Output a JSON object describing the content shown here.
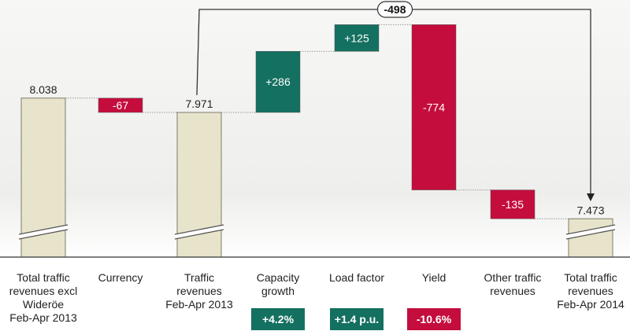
{
  "chart_data": {
    "type": "waterfall",
    "categories": [
      "Total traffic revenues excl Wideröe Feb-Apr 2013",
      "Currency",
      "Traffic revenues Feb-Apr 2013",
      "Capacity growth",
      "Load factor",
      "Yield",
      "Other traffic revenues",
      "Total traffic revenues Feb-Apr 2014"
    ],
    "steps": [
      {
        "label_lines": [
          "Total traffic",
          "revenues excl",
          "Wideröe",
          "Feb-Apr 2013"
        ],
        "kind": "total",
        "value": 8038,
        "value_label": "8.038"
      },
      {
        "label_lines": [
          "Currency"
        ],
        "kind": "delta",
        "value": -67,
        "value_label": "-67"
      },
      {
        "label_lines": [
          "Traffic",
          "revenues",
          "Feb-Apr 2013"
        ],
        "kind": "total",
        "value": 7971,
        "value_label": "7.971"
      },
      {
        "label_lines": [
          "Capacity",
          "growth"
        ],
        "kind": "delta",
        "value": 286,
        "value_label": "+286",
        "badge": "+4.2%"
      },
      {
        "label_lines": [
          "Load factor"
        ],
        "kind": "delta",
        "value": 125,
        "value_label": "+125",
        "badge": "+1.4 p.u."
      },
      {
        "label_lines": [
          "Yield"
        ],
        "kind": "delta",
        "value": -774,
        "value_label": "-774",
        "badge": "-10.6%"
      },
      {
        "label_lines": [
          "Other traffic",
          "revenues"
        ],
        "kind": "delta",
        "value": -135,
        "value_label": "-135"
      },
      {
        "label_lines": [
          "Total traffic",
          "revenues",
          "Feb-Apr 2014"
        ],
        "kind": "total",
        "value": 7473,
        "value_label": "7.473"
      }
    ],
    "bracket": {
      "from_step": 2,
      "to_step": 7,
      "value": -498,
      "value_label": "-498"
    },
    "axis_break": true,
    "grid": false,
    "legend": "none"
  },
  "colors": {
    "total_fill": "#e8e4cb",
    "total_stroke": "#7d7b6a",
    "positive": "#147060",
    "negative": "#c40d3d",
    "connector": "#9a9a9a",
    "baseline": "#555555",
    "text": "#222222"
  }
}
